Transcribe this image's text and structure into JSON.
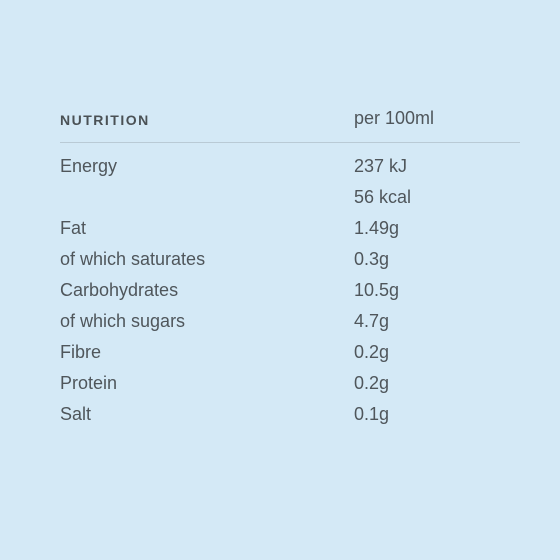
{
  "table": {
    "header_label": "NUTRITION",
    "header_unit": "per 100ml",
    "rows": [
      {
        "name": "Energy",
        "value": "237 kJ"
      },
      {
        "name": "",
        "value": "56 kcal"
      },
      {
        "name": "Fat",
        "value": "1.49g"
      },
      {
        "name": "of which saturates",
        "value": "0.3g"
      },
      {
        "name": "Carbohydrates",
        "value": "10.5g"
      },
      {
        "name": "of which sugars",
        "value": "4.7g"
      },
      {
        "name": "Fibre",
        "value": "0.2g"
      },
      {
        "name": "Protein",
        "value": "0.2g"
      },
      {
        "name": "Salt",
        "value": "0.1g"
      }
    ]
  },
  "colors": {
    "background": "#d4e9f6",
    "text": "#4f565b",
    "divider": "#b9cad5"
  }
}
